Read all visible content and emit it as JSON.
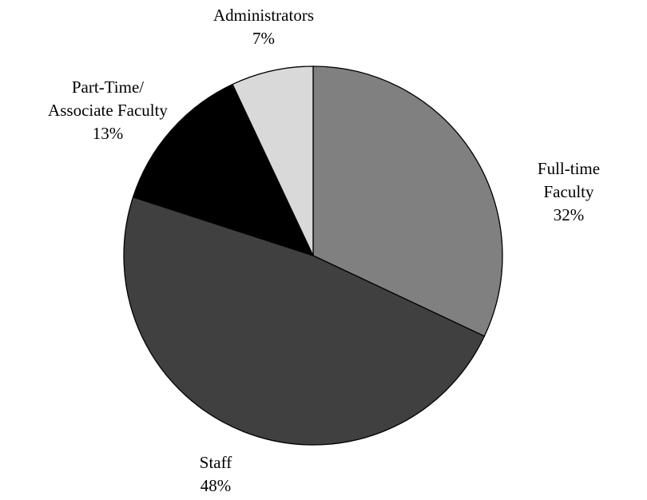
{
  "chart_data": {
    "type": "pie",
    "categories": [
      "Full-time Faculty",
      "Staff",
      "Part-Time/\nAssociate Faculty",
      "Administrators"
    ],
    "values": [
      32,
      48,
      13,
      7
    ],
    "value_labels": [
      "32%",
      "48%",
      "13%",
      "7%"
    ],
    "colors": [
      "#808080",
      "#404040",
      "#000000",
      "#d9d9d9"
    ]
  }
}
